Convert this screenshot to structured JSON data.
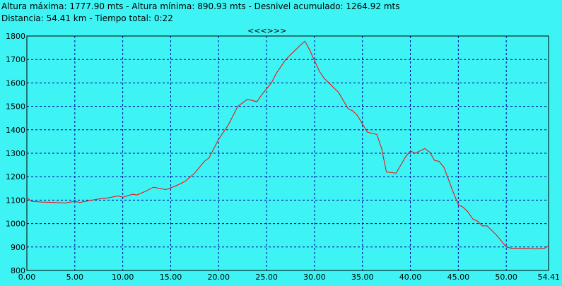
{
  "header": {
    "line1": "Altura máxima: 1777.90 mts - Altura mínima: 890.93 mts - Desnivel acumulado: 1264.92 mts",
    "line2": "Distancia: 54.41 km - Tiempo total: 0:22"
  },
  "nav": {
    "label": "<<<>>>"
  },
  "colors": {
    "background": "#3ef3f3",
    "line": "#ff0000",
    "grid": "#0000a0",
    "frame": "#000000"
  },
  "chart_data": {
    "type": "line",
    "title": "",
    "xlabel": "",
    "ylabel": "",
    "xlim": [
      0,
      54.41
    ],
    "ylim": [
      800,
      1800
    ],
    "x_ticks": [
      "0.00",
      "5.00",
      "10.00",
      "15.00",
      "20.00",
      "25.00",
      "30.00",
      "35.00",
      "40.00",
      "45.00",
      "50.00",
      "54.41"
    ],
    "y_ticks": [
      "800",
      "900",
      "1000",
      "1100",
      "1200",
      "1300",
      "1400",
      "1500",
      "1600",
      "1700",
      "1800"
    ],
    "grid": true,
    "series": [
      {
        "x": [
          0,
          0.5,
          1.5,
          3,
          4,
          5,
          5.5,
          6.5,
          7.5,
          8.5,
          9.5,
          10,
          11,
          11.5,
          12.5,
          13.2,
          14.5,
          15.5,
          16.5,
          17.5,
          18.5,
          19,
          20,
          21,
          22,
          23,
          24,
          24.5,
          25.5,
          26,
          27,
          28,
          28.5,
          29,
          29.5,
          30.5,
          31,
          31.5,
          32.5,
          33.5,
          34,
          34.5,
          35.5,
          36.5,
          37,
          37.5,
          38.5,
          39.5,
          40,
          40.5,
          41.5,
          42,
          42.5,
          43,
          43.5,
          44.5,
          45,
          45.5,
          46,
          46.5,
          47,
          47.5,
          48,
          49,
          50,
          50.5,
          51,
          52,
          53,
          54,
          54.41
        ],
        "y": [
          1110,
          1095,
          1092,
          1090,
          1088,
          1095,
          1090,
          1098,
          1105,
          1110,
          1118,
          1112,
          1125,
          1122,
          1140,
          1155,
          1145,
          1160,
          1180,
          1215,
          1265,
          1280,
          1360,
          1420,
          1500,
          1530,
          1520,
          1550,
          1600,
          1640,
          1700,
          1740,
          1760,
          1778,
          1740,
          1650,
          1620,
          1600,
          1560,
          1490,
          1480,
          1460,
          1390,
          1380,
          1320,
          1220,
          1215,
          1285,
          1310,
          1300,
          1320,
          1305,
          1270,
          1265,
          1240,
          1130,
          1080,
          1070,
          1050,
          1020,
          1010,
          990,
          990,
          950,
          900,
          895,
          895,
          895,
          893,
          895,
          905
        ]
      }
    ]
  }
}
